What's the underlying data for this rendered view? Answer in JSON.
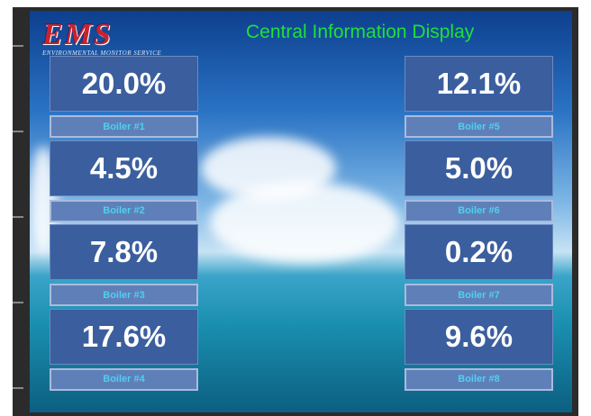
{
  "header": {
    "logo": "EMS",
    "logo_subtitle": "ENVIRONMENTAL MONITOR SERVICE",
    "title": "Central Information Display"
  },
  "boilers": [
    {
      "value": "20.0%",
      "label": "Boiler #1"
    },
    {
      "value": "4.5%",
      "label": "Boiler #2"
    },
    {
      "value": "7.8%",
      "label": "Boiler #3"
    },
    {
      "value": "17.6%",
      "label": "Boiler #4"
    },
    {
      "value": "12.1%",
      "label": "Boiler #5"
    },
    {
      "value": "5.0%",
      "label": "Boiler #6"
    },
    {
      "value": "0.2%",
      "label": "Boiler #7"
    },
    {
      "value": "9.6%",
      "label": "Boiler #8"
    }
  ]
}
